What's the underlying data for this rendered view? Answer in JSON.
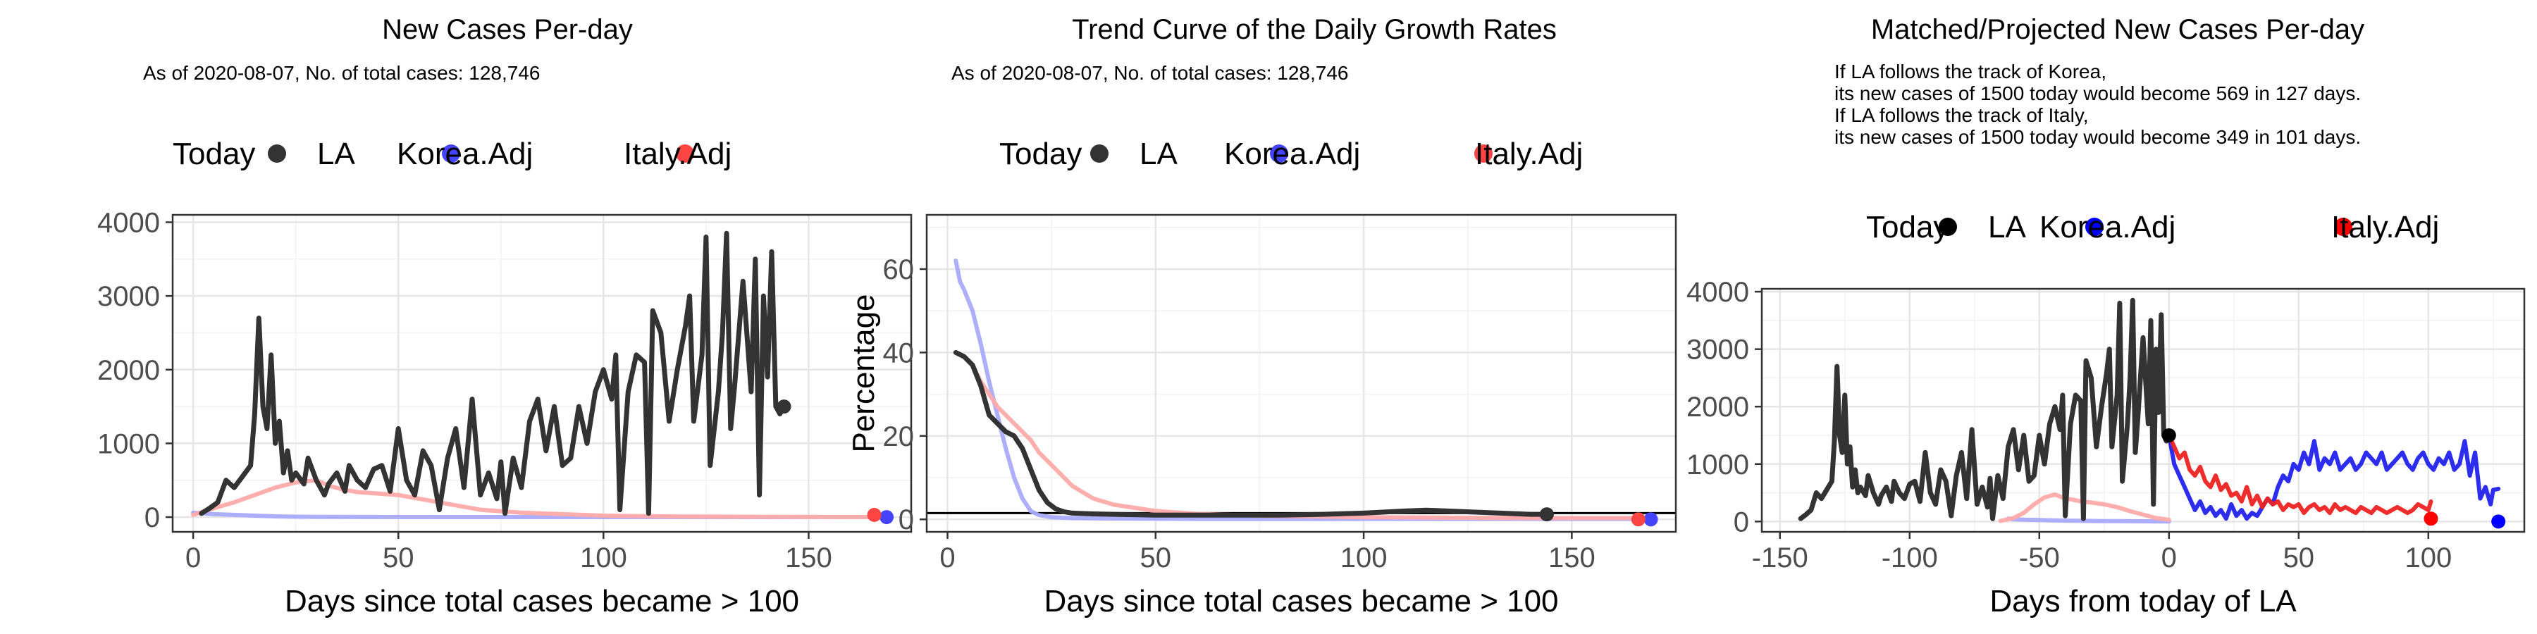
{
  "chart_data": [
    {
      "type": "line",
      "title": "New Cases Per-day",
      "subtitle_lines": [
        "As of 2020-08-07, No. of total cases: 128,746"
      ],
      "legend": {
        "placement": "top",
        "entries": [
          "Today",
          "LA",
          "Korea.Adj",
          "Italy.Adj"
        ]
      },
      "xlabel": "Days since total cases became > 100",
      "ylabel": "",
      "xlim": [
        -5,
        175
      ],
      "ylim": [
        -200,
        4100
      ],
      "xticks": [
        0,
        50,
        100,
        150
      ],
      "yticks": [
        0,
        1000,
        2000,
        3000,
        4000
      ],
      "grid": true,
      "series": [
        {
          "name": "LA",
          "color": "#333333",
          "x": [
            2,
            4,
            6,
            8,
            10,
            12,
            14,
            15,
            16,
            17,
            18,
            19,
            20,
            21,
            22,
            23,
            24,
            25,
            27,
            28,
            30,
            32,
            33,
            35,
            37,
            38,
            40,
            42,
            44,
            46,
            48,
            50,
            52,
            54,
            56,
            58,
            60,
            62,
            64,
            66,
            68,
            70,
            72,
            74,
            75,
            76,
            78,
            80,
            82,
            84,
            86,
            88,
            90,
            92,
            94,
            96,
            98,
            100,
            102,
            103,
            104,
            106,
            108,
            110,
            111,
            112,
            114,
            116,
            118,
            120,
            121,
            122,
            124,
            125,
            126,
            128,
            129,
            130,
            131,
            132,
            134,
            136,
            137,
            138,
            139,
            140,
            141,
            142,
            143,
            144,
            145
          ],
          "y": [
            50,
            120,
            200,
            500,
            400,
            550,
            700,
            1400,
            2700,
            1500,
            1200,
            2200,
            1000,
            1300,
            600,
            900,
            500,
            600,
            450,
            800,
            500,
            300,
            450,
            600,
            350,
            700,
            500,
            400,
            650,
            700,
            350,
            1200,
            500,
            300,
            900,
            700,
            100,
            800,
            1200,
            400,
            1600,
            300,
            600,
            250,
            750,
            50,
            800,
            400,
            1300,
            1600,
            900,
            1500,
            700,
            800,
            1500,
            1000,
            1700,
            2000,
            1600,
            2200,
            100,
            1700,
            2200,
            2100,
            50,
            2800,
            2500,
            1300,
            2000,
            2600,
            3000,
            1300,
            2200,
            3800,
            700,
            1700,
            2500,
            3850,
            1200,
            1800,
            3200,
            1700,
            3500,
            300,
            3000,
            1900,
            3600,
            1500,
            1400,
            1500,
            1500
          ]
        },
        {
          "name": "Korea.Adj",
          "color": "#aaaaff",
          "x": [
            0,
            5,
            10,
            15,
            20,
            25,
            30,
            40,
            60,
            80,
            100,
            120,
            140,
            160,
            168
          ],
          "y": [
            60,
            40,
            30,
            20,
            10,
            5,
            3,
            2,
            1,
            1,
            1,
            1,
            1,
            1,
            1
          ]
        },
        {
          "name": "Italy.Adj",
          "color": "#ffaaaa",
          "x": [
            0,
            5,
            10,
            15,
            20,
            25,
            30,
            33,
            36,
            40,
            45,
            50,
            55,
            60,
            65,
            70,
            80,
            90,
            100,
            110,
            120,
            130,
            140,
            150,
            160,
            166
          ],
          "y": [
            30,
            120,
            200,
            300,
            400,
            470,
            500,
            430,
            380,
            340,
            320,
            300,
            250,
            200,
            150,
            100,
            60,
            40,
            20,
            12,
            8,
            5,
            3,
            2,
            1,
            1
          ]
        }
      ],
      "today_points": [
        {
          "name": "LA",
          "x": 144,
          "y": 1500,
          "color": "#333333"
        },
        {
          "name": "Korea.Adj",
          "x": 169,
          "y": 0,
          "color": "#4444ff"
        },
        {
          "name": "Italy.Adj",
          "x": 166,
          "y": 30,
          "color": "#ff4444"
        }
      ]
    },
    {
      "type": "line",
      "title": "Trend Curve of the Daily Growth Rates",
      "subtitle_lines": [
        "As of 2020-08-07, No. of total cases: 128,746"
      ],
      "legend": {
        "placement": "top",
        "entries": [
          "Today",
          "LA",
          "Korea.Adj",
          "Italy.Adj"
        ]
      },
      "xlabel": "Days since total cases became > 100",
      "ylabel": "Percentage",
      "xlim": [
        -5,
        175
      ],
      "ylim": [
        -3,
        73
      ],
      "xticks": [
        0,
        50,
        100,
        150
      ],
      "yticks": [
        0,
        20,
        40,
        60
      ],
      "grid": true,
      "hline": 1.5,
      "series": [
        {
          "name": "LA",
          "color": "#333333",
          "x": [
            2,
            4,
            6,
            8,
            10,
            12,
            14,
            16,
            18,
            20,
            22,
            24,
            26,
            28,
            30,
            35,
            40,
            50,
            60,
            70,
            80,
            90,
            100,
            110,
            115,
            120,
            130,
            140,
            144
          ],
          "y": [
            40,
            39,
            37,
            32,
            25,
            23,
            21,
            20,
            17,
            12,
            7,
            4,
            2.5,
            1.8,
            1.5,
            1.3,
            1.2,
            1.0,
            1.0,
            1.0,
            1.0,
            1.2,
            1.5,
            2.0,
            2.2,
            2.0,
            1.6,
            1.2,
            1.2
          ]
        },
        {
          "name": "Korea.Adj",
          "color": "#aaaaff",
          "x": [
            2,
            3,
            4,
            6,
            8,
            10,
            12,
            14,
            16,
            18,
            20,
            22,
            25,
            30,
            40,
            60,
            80,
            100,
            120,
            140,
            160,
            169
          ],
          "y": [
            62,
            57,
            55,
            50,
            42,
            33,
            25,
            17,
            10,
            5,
            2,
            1,
            0.5,
            0.3,
            0.2,
            0.1,
            0.1,
            0.1,
            0.1,
            0.1,
            0.1,
            0.1
          ]
        },
        {
          "name": "Italy.Adj",
          "color": "#ffaaaa",
          "x": [
            2,
            4,
            6,
            8,
            10,
            12,
            14,
            16,
            18,
            20,
            22,
            25,
            28,
            30,
            35,
            40,
            50,
            60,
            70,
            80,
            100,
            120,
            140,
            160,
            166
          ],
          "y": [
            40,
            39,
            37,
            33,
            30,
            27,
            25,
            23,
            21,
            19,
            16,
            13,
            10,
            8,
            5,
            3.5,
            2,
            1.3,
            1,
            0.8,
            0.5,
            0.4,
            0.3,
            0.3,
            0.3
          ]
        }
      ],
      "today_points": [
        {
          "name": "LA",
          "x": 144,
          "y": 1.2,
          "color": "#333333"
        },
        {
          "name": "Korea.Adj",
          "x": 169,
          "y": 0,
          "color": "#4444ff"
        },
        {
          "name": "Italy.Adj",
          "x": 166,
          "y": 0,
          "color": "#ff4444"
        }
      ]
    },
    {
      "type": "line",
      "title": "Matched/Projected New Cases Per-day",
      "subtitle_lines": [
        "If LA follows the track of Korea,",
        "its new cases of 1500 today would become 569 in 127 days.",
        "If LA follows the track of Italy,",
        "its new cases of 1500 today would become 349 in 101 days."
      ],
      "legend": {
        "placement": "top",
        "entries": [
          "Today",
          "LA",
          "Korea.Adj",
          "Italy.Adj"
        ]
      },
      "xlabel": "Days from today of LA",
      "ylabel": "",
      "xlim": [
        -157,
        137
      ],
      "ylim": [
        -180,
        4050
      ],
      "xticks": [
        -150,
        -100,
        -50,
        0,
        50,
        100
      ],
      "yticks": [
        0,
        1000,
        2000,
        3000,
        4000
      ],
      "grid": true,
      "series": [
        {
          "name": "LA",
          "color": "#333333",
          "x": [
            -142,
            -140,
            -138,
            -136,
            -134,
            -132,
            -130,
            -129,
            -128,
            -127,
            -126,
            -125,
            -124,
            -123,
            -122,
            -121,
            -120,
            -119,
            -117,
            -116,
            -114,
            -112,
            -111,
            -109,
            -107,
            -106,
            -104,
            -102,
            -100,
            -98,
            -96,
            -94,
            -92,
            -90,
            -88,
            -86,
            -84,
            -82,
            -80,
            -78,
            -76,
            -74,
            -72,
            -70,
            -69,
            -68,
            -66,
            -64,
            -62,
            -60,
            -58,
            -56,
            -54,
            -52,
            -50,
            -48,
            -46,
            -44,
            -42,
            -41,
            -40,
            -38,
            -36,
            -34,
            -33,
            -32,
            -30,
            -28,
            -26,
            -24,
            -23,
            -22,
            -20,
            -19,
            -18,
            -16,
            -15,
            -14,
            -13,
            -12,
            -10,
            -8,
            -7,
            -6,
            -5,
            -4,
            -3,
            -2,
            -1,
            0
          ],
          "y": [
            50,
            120,
            200,
            500,
            400,
            550,
            700,
            1400,
            2700,
            1500,
            1200,
            2200,
            1000,
            1300,
            600,
            900,
            500,
            600,
            450,
            800,
            500,
            300,
            450,
            600,
            350,
            700,
            500,
            400,
            650,
            700,
            350,
            1200,
            500,
            300,
            900,
            700,
            100,
            800,
            1200,
            400,
            1600,
            300,
            600,
            250,
            750,
            50,
            800,
            400,
            1300,
            1600,
            900,
            1500,
            700,
            800,
            1500,
            1000,
            1700,
            2000,
            1600,
            2200,
            100,
            1700,
            2200,
            2100,
            50,
            2800,
            2500,
            1300,
            2000,
            2600,
            3000,
            1300,
            2200,
            3800,
            700,
            1700,
            2500,
            3850,
            1200,
            1800,
            3200,
            1700,
            3500,
            300,
            3000,
            1900,
            3600,
            1500,
            1400,
            1500
          ]
        },
        {
          "name": "Korea.Adj (before)",
          "color": "#aaaaff",
          "x": [
            -62,
            -60,
            -55,
            -50,
            -45,
            -40,
            -35,
            -30,
            -25,
            -20,
            -15,
            -10,
            -5,
            0
          ],
          "y": [
            50,
            40,
            30,
            25,
            20,
            15,
            12,
            10,
            8,
            6,
            5,
            4,
            3,
            0
          ]
        },
        {
          "name": "Italy.Adj (before)",
          "color": "#ffaaaa",
          "x": [
            -65,
            -60,
            -56,
            -52,
            -48,
            -44,
            -40,
            -37,
            -34,
            -30,
            -25,
            -20,
            -15,
            -10,
            -5,
            0
          ],
          "y": [
            10,
            60,
            150,
            300,
            420,
            470,
            400,
            380,
            350,
            330,
            300,
            250,
            180,
            120,
            60,
            30
          ]
        },
        {
          "name": "Korea.Adj",
          "color": "#2222ee",
          "x": [
            0,
            2,
            4,
            6,
            8,
            10,
            12,
            14,
            16,
            18,
            20,
            22,
            24,
            26,
            28,
            30,
            32,
            34,
            36,
            38,
            40,
            42,
            44,
            46,
            48,
            50,
            52,
            54,
            56,
            58,
            60,
            62,
            64,
            66,
            68,
            70,
            72,
            74,
            76,
            78,
            80,
            82,
            84,
            86,
            88,
            90,
            92,
            94,
            96,
            98,
            100,
            102,
            104,
            106,
            108,
            110,
            112,
            114,
            116,
            118,
            120,
            122,
            124,
            125,
            127
          ],
          "y": [
            1500,
            1000,
            800,
            600,
            400,
            200,
            350,
            150,
            250,
            100,
            200,
            50,
            300,
            100,
            200,
            50,
            150,
            100,
            250,
            400,
            300,
            600,
            800,
            700,
            1000,
            900,
            1200,
            1000,
            1400,
            900,
            1100,
            1000,
            1200,
            900,
            1000,
            1100,
            900,
            1000,
            1200,
            1100,
            1000,
            1200,
            900,
            1000,
            1100,
            1200,
            1000,
            900,
            1100,
            1200,
            1000,
            900,
            1100,
            1000,
            1200,
            900,
            1000,
            1400,
            800,
            1200,
            400,
            600,
            300,
            550,
            569
          ]
        },
        {
          "name": "Italy.Adj",
          "color": "#ee2222",
          "x": [
            0,
            2,
            4,
            6,
            8,
            10,
            12,
            14,
            16,
            18,
            20,
            22,
            24,
            26,
            28,
            30,
            32,
            34,
            36,
            38,
            40,
            42,
            44,
            46,
            48,
            50,
            52,
            54,
            56,
            58,
            60,
            62,
            64,
            66,
            68,
            70,
            72,
            74,
            76,
            78,
            80,
            82,
            84,
            86,
            88,
            90,
            92,
            94,
            96,
            98,
            100,
            101
          ],
          "y": [
            1500,
            1300,
            1100,
            1200,
            900,
            800,
            950,
            700,
            600,
            800,
            550,
            650,
            450,
            500,
            350,
            600,
            300,
            450,
            250,
            400,
            300,
            350,
            200,
            300,
            250,
            300,
            150,
            250,
            300,
            200,
            250,
            150,
            300,
            200,
            250,
            200,
            150,
            250,
            200,
            150,
            250,
            200,
            150,
            200,
            250,
            200,
            150,
            200,
            300,
            250,
            200,
            349
          ]
        }
      ],
      "today_points": [
        {
          "name": "LA",
          "x": 0,
          "y": 1500,
          "color": "#000000"
        },
        {
          "name": "Korea.Adj",
          "x": 127,
          "y": 0,
          "color": "#0000ff"
        },
        {
          "name": "Italy.Adj",
          "x": 101,
          "y": 50,
          "color": "#ff0000"
        }
      ]
    }
  ]
}
